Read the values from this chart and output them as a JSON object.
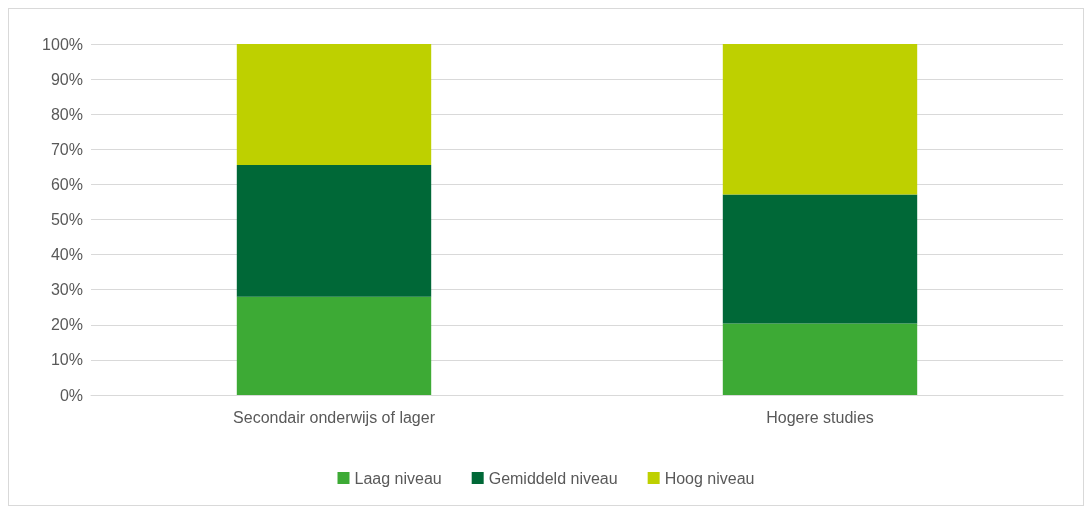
{
  "chart_data": {
    "type": "bar",
    "stacked": true,
    "categories": [
      "Secondair onderwijs of lager",
      "Hogere studies"
    ],
    "series": [
      {
        "name": "Laag niveau",
        "color": "#3daa35",
        "values": [
          28,
          20.4
        ]
      },
      {
        "name": "Gemiddeld niveau",
        "color": "#006837",
        "values": [
          37.5,
          36.7
        ]
      },
      {
        "name": "Hoog niveau",
        "color": "#bed000",
        "values": [
          34.5,
          42.9
        ]
      }
    ],
    "ylim": [
      0,
      100
    ],
    "yticks": [
      {
        "value": 0,
        "label": "0%"
      },
      {
        "value": 10,
        "label": "10%"
      },
      {
        "value": 20,
        "label": "20%"
      },
      {
        "value": 30,
        "label": "30%"
      },
      {
        "value": 40,
        "label": "40%"
      },
      {
        "value": 50,
        "label": "50%"
      },
      {
        "value": 60,
        "label": "60%"
      },
      {
        "value": 70,
        "label": "70%"
      },
      {
        "value": 80,
        "label": "80%"
      },
      {
        "value": 90,
        "label": "90%"
      },
      {
        "value": 100,
        "label": "100%"
      }
    ],
    "grid": "y",
    "legend": "bottom"
  }
}
